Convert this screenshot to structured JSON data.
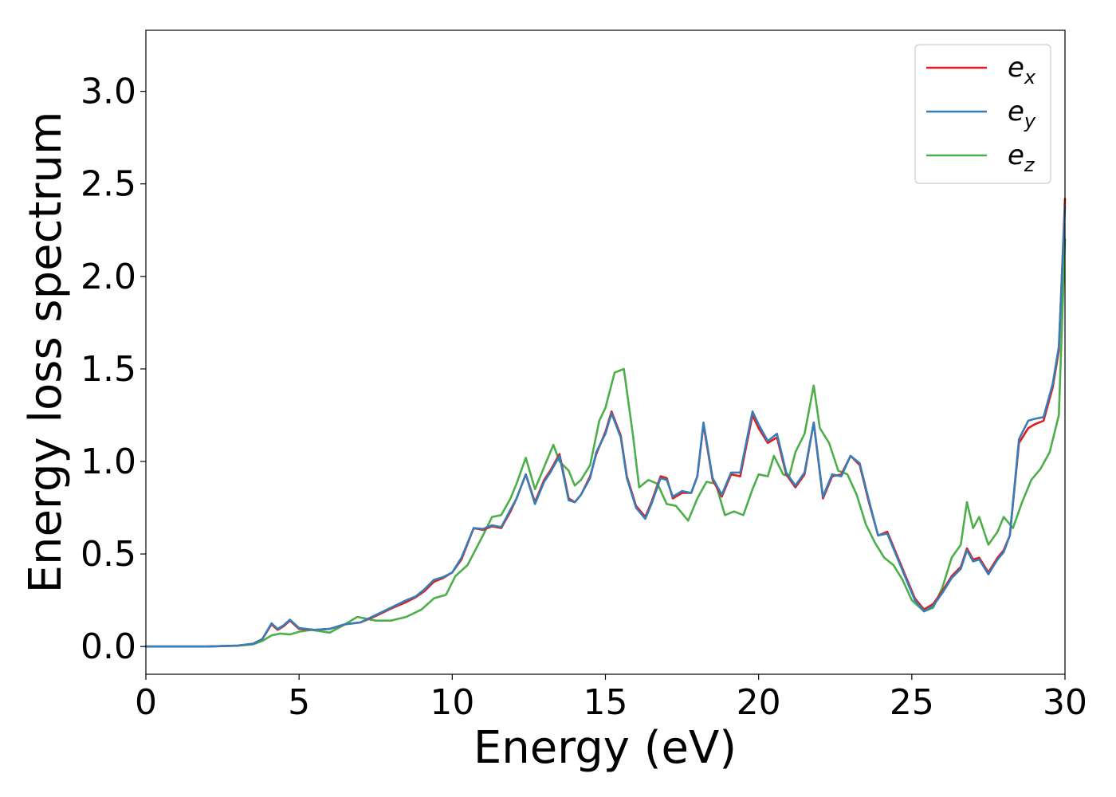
{
  "chart_data": {
    "type": "line",
    "title": "",
    "xlabel": "Energy (eV)",
    "ylabel": "Energy loss spectrum",
    "xlim": [
      0,
      30
    ],
    "ylim": [
      -0.15,
      3.33
    ],
    "xticks": [
      0,
      5,
      10,
      15,
      20,
      25,
      30
    ],
    "xtick_labels": [
      "0",
      "5",
      "10",
      "15",
      "20",
      "25",
      "30"
    ],
    "yticks": [
      0.0,
      0.5,
      1.0,
      1.5,
      2.0,
      2.5,
      3.0
    ],
    "ytick_labels": [
      "0.0",
      "0.5",
      "1.0",
      "1.5",
      "2.0",
      "2.5",
      "3.0"
    ],
    "grid": false,
    "legend_position": "top-right",
    "series": [
      {
        "name": "e_x",
        "label_main": "e",
        "label_sub": "x",
        "color": "#e41a1c",
        "x": [
          0,
          1,
          2,
          3,
          3.5,
          3.8,
          4.1,
          4.3,
          4.5,
          4.7,
          5.0,
          5.5,
          6.0,
          6.5,
          7.0,
          7.5,
          8.0,
          8.5,
          8.8,
          9.1,
          9.4,
          9.7,
          10.0,
          10.3,
          10.7,
          11.0,
          11.3,
          11.6,
          11.9,
          12.1,
          12.4,
          12.7,
          13.0,
          13.2,
          13.5,
          13.8,
          14.0,
          14.2,
          14.5,
          14.7,
          15.0,
          15.2,
          15.5,
          15.7,
          16.0,
          16.3,
          16.5,
          16.8,
          17.0,
          17.2,
          17.5,
          17.8,
          18.0,
          18.2,
          18.5,
          18.8,
          19.1,
          19.4,
          19.8,
          20.0,
          20.3,
          20.6,
          20.9,
          21.2,
          21.5,
          21.8,
          22.1,
          22.4,
          22.7,
          23.0,
          23.3,
          23.6,
          23.9,
          24.2,
          24.5,
          24.8,
          25.1,
          25.4,
          25.7,
          26.0,
          26.3,
          26.6,
          26.8,
          27.0,
          27.2,
          27.5,
          27.8,
          28.0,
          28.2,
          28.5,
          28.8,
          29.0,
          29.3,
          29.6,
          29.8,
          30.0
        ],
        "y": [
          0,
          0,
          0,
          0.005,
          0.015,
          0.04,
          0.12,
          0.09,
          0.11,
          0.14,
          0.095,
          0.09,
          0.095,
          0.12,
          0.13,
          0.165,
          0.205,
          0.24,
          0.265,
          0.3,
          0.35,
          0.37,
          0.4,
          0.47,
          0.64,
          0.63,
          0.65,
          0.64,
          0.73,
          0.8,
          0.93,
          0.78,
          0.9,
          0.95,
          1.04,
          0.8,
          0.78,
          0.82,
          0.92,
          1.04,
          1.16,
          1.27,
          1.14,
          0.92,
          0.76,
          0.7,
          0.78,
          0.92,
          0.91,
          0.8,
          0.83,
          0.83,
          0.92,
          1.2,
          0.9,
          0.81,
          0.93,
          0.92,
          1.25,
          1.18,
          1.1,
          1.13,
          0.93,
          0.86,
          0.93,
          1.21,
          0.8,
          0.92,
          0.93,
          1.03,
          0.98,
          0.78,
          0.6,
          0.62,
          0.5,
          0.38,
          0.26,
          0.2,
          0.23,
          0.3,
          0.38,
          0.43,
          0.53,
          0.47,
          0.48,
          0.4,
          0.48,
          0.52,
          0.6,
          1.1,
          1.18,
          1.2,
          1.22,
          1.4,
          1.6,
          2.42
        ]
      },
      {
        "name": "e_y",
        "label_main": "e",
        "label_sub": "y",
        "color": "#377eb8",
        "x": [
          0,
          1,
          2,
          3,
          3.5,
          3.8,
          4.1,
          4.3,
          4.5,
          4.7,
          5.0,
          5.5,
          6.0,
          6.5,
          7.0,
          7.5,
          8.0,
          8.5,
          8.8,
          9.1,
          9.4,
          9.7,
          10.0,
          10.3,
          10.7,
          11.0,
          11.3,
          11.6,
          11.9,
          12.1,
          12.4,
          12.7,
          13.0,
          13.2,
          13.5,
          13.8,
          14.0,
          14.2,
          14.5,
          14.7,
          15.0,
          15.2,
          15.5,
          15.7,
          16.0,
          16.3,
          16.5,
          16.8,
          17.0,
          17.2,
          17.5,
          17.8,
          18.0,
          18.2,
          18.5,
          18.8,
          19.1,
          19.4,
          19.8,
          20.0,
          20.3,
          20.6,
          20.9,
          21.2,
          21.5,
          21.8,
          22.1,
          22.4,
          22.7,
          23.0,
          23.3,
          23.6,
          23.9,
          24.2,
          24.5,
          24.8,
          25.1,
          25.4,
          25.7,
          26.0,
          26.3,
          26.6,
          26.8,
          27.0,
          27.2,
          27.5,
          27.8,
          28.0,
          28.2,
          28.5,
          28.8,
          29.0,
          29.3,
          29.6,
          29.8,
          30.0
        ],
        "y": [
          0,
          0,
          0,
          0.005,
          0.015,
          0.04,
          0.125,
          0.095,
          0.115,
          0.145,
          0.1,
          0.09,
          0.095,
          0.12,
          0.13,
          0.17,
          0.21,
          0.25,
          0.27,
          0.31,
          0.36,
          0.375,
          0.4,
          0.48,
          0.64,
          0.635,
          0.655,
          0.645,
          0.74,
          0.8,
          0.93,
          0.77,
          0.89,
          0.94,
          1.03,
          0.79,
          0.78,
          0.82,
          0.91,
          1.05,
          1.15,
          1.26,
          1.13,
          0.91,
          0.75,
          0.69,
          0.77,
          0.91,
          0.9,
          0.81,
          0.84,
          0.83,
          0.92,
          1.21,
          0.91,
          0.82,
          0.94,
          0.94,
          1.27,
          1.2,
          1.11,
          1.15,
          0.94,
          0.87,
          0.94,
          1.21,
          0.81,
          0.93,
          0.92,
          1.03,
          0.99,
          0.79,
          0.6,
          0.61,
          0.49,
          0.37,
          0.25,
          0.19,
          0.22,
          0.29,
          0.37,
          0.42,
          0.52,
          0.46,
          0.47,
          0.39,
          0.47,
          0.51,
          0.6,
          1.12,
          1.22,
          1.23,
          1.24,
          1.42,
          1.62,
          2.38
        ]
      },
      {
        "name": "e_z",
        "label_main": "e",
        "label_sub": "z",
        "color": "#4daf4a",
        "x": [
          0,
          1,
          2,
          3,
          3.5,
          3.8,
          4.1,
          4.4,
          4.7,
          5.0,
          5.4,
          6.0,
          6.5,
          6.9,
          7.2,
          7.5,
          8.0,
          8.5,
          9.0,
          9.4,
          9.8,
          10.1,
          10.5,
          11.0,
          11.3,
          11.6,
          11.9,
          12.1,
          12.4,
          12.7,
          13.0,
          13.3,
          13.5,
          13.8,
          14.0,
          14.2,
          14.5,
          14.8,
          15.0,
          15.3,
          15.6,
          15.9,
          16.1,
          16.4,
          16.7,
          17.0,
          17.3,
          17.7,
          18.0,
          18.3,
          18.6,
          18.9,
          19.2,
          19.5,
          19.8,
          20.0,
          20.3,
          20.5,
          20.8,
          21.0,
          21.2,
          21.5,
          21.8,
          22.0,
          22.3,
          22.6,
          22.9,
          23.2,
          23.5,
          23.8,
          24.1,
          24.4,
          24.7,
          25.0,
          25.4,
          25.7,
          26.0,
          26.3,
          26.6,
          26.8,
          27.0,
          27.2,
          27.5,
          27.8,
          28.0,
          28.3,
          28.6,
          28.9,
          29.2,
          29.5,
          29.8,
          30.0
        ],
        "y": [
          0,
          0,
          0,
          0.004,
          0.012,
          0.03,
          0.06,
          0.07,
          0.065,
          0.08,
          0.09,
          0.075,
          0.12,
          0.16,
          0.15,
          0.14,
          0.14,
          0.16,
          0.2,
          0.26,
          0.28,
          0.38,
          0.44,
          0.6,
          0.7,
          0.71,
          0.8,
          0.88,
          1.02,
          0.85,
          0.97,
          1.09,
          1.0,
          0.95,
          0.87,
          0.9,
          0.98,
          1.22,
          1.29,
          1.48,
          1.5,
          1.14,
          0.86,
          0.9,
          0.88,
          0.77,
          0.76,
          0.68,
          0.8,
          0.89,
          0.88,
          0.71,
          0.73,
          0.71,
          0.85,
          0.93,
          0.92,
          1.03,
          0.93,
          0.92,
          1.05,
          1.15,
          1.41,
          1.18,
          1.1,
          0.95,
          0.93,
          0.82,
          0.66,
          0.56,
          0.48,
          0.44,
          0.36,
          0.25,
          0.19,
          0.21,
          0.32,
          0.48,
          0.55,
          0.78,
          0.64,
          0.7,
          0.55,
          0.62,
          0.7,
          0.64,
          0.78,
          0.9,
          0.96,
          1.05,
          1.25,
          2.2
        ]
      }
    ]
  }
}
